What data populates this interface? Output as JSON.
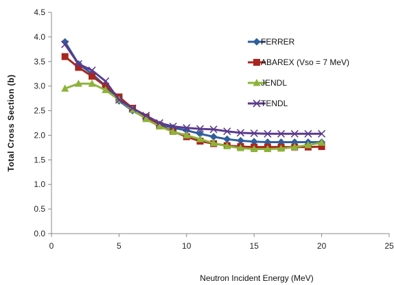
{
  "chart_data": {
    "type": "line",
    "xlabel": "Neutron Incident  Energy (MeV)",
    "ylabel": "Total Cross Section (b)",
    "xlim": [
      0,
      25
    ],
    "ylim": [
      0,
      4.5
    ],
    "x_ticks": [
      "0",
      "5",
      "10",
      "15",
      "20",
      "25"
    ],
    "y_ticks": [
      "0.0",
      "0.5",
      "1.0",
      "1.5",
      "2.0",
      "2.5",
      "3.0",
      "3.5",
      "4.0",
      "4.5"
    ],
    "grid": false,
    "legend_position": "top-right",
    "series": [
      {
        "name": "FERRER",
        "color": "#2E5E9E",
        "marker": "diamond",
        "x": [
          1,
          2,
          3,
          4,
          5,
          6,
          7,
          8,
          9,
          10,
          11,
          12,
          13,
          14,
          15,
          16,
          17,
          18,
          19,
          20
        ],
        "y": [
          3.9,
          3.45,
          3.25,
          3.0,
          2.7,
          2.5,
          2.35,
          2.22,
          2.15,
          2.1,
          2.03,
          1.97,
          1.92,
          1.89,
          1.87,
          1.86,
          1.86,
          1.86,
          1.86,
          1.86
        ]
      },
      {
        "name": "ABAREX (Vso = 7 MeV)",
        "color": "#A8261E",
        "marker": "square",
        "x": [
          1,
          2,
          3,
          4,
          5,
          6,
          7,
          8,
          9,
          10,
          11,
          12,
          13,
          14,
          15,
          16,
          17,
          18,
          19,
          20
        ],
        "y": [
          3.6,
          3.38,
          3.2,
          3.0,
          2.78,
          2.55,
          2.37,
          2.2,
          2.08,
          1.97,
          1.88,
          1.83,
          1.79,
          1.77,
          1.76,
          1.76,
          1.76,
          1.76,
          1.76,
          1.77
        ]
      },
      {
        "name": "JENDL",
        "color": "#8DB33A",
        "marker": "triangle",
        "x": [
          1,
          2,
          3,
          4,
          5,
          6,
          7,
          8,
          9,
          10,
          11,
          12,
          13,
          14,
          15,
          16,
          17,
          18,
          19,
          20
        ],
        "y": [
          2.95,
          3.05,
          3.05,
          2.92,
          2.72,
          2.52,
          2.33,
          2.18,
          2.07,
          2.0,
          1.92,
          1.84,
          1.78,
          1.74,
          1.72,
          1.72,
          1.73,
          1.76,
          1.8,
          1.85
        ]
      },
      {
        "name": "TENDL",
        "color": "#5B3A8C",
        "marker": "x",
        "x": [
          1,
          2,
          3,
          4,
          5,
          6,
          7,
          8,
          9,
          10,
          11,
          12,
          13,
          14,
          15,
          16,
          17,
          18,
          19,
          20
        ],
        "y": [
          3.85,
          3.45,
          3.32,
          3.1,
          2.72,
          2.55,
          2.4,
          2.25,
          2.18,
          2.15,
          2.13,
          2.12,
          2.08,
          2.05,
          2.04,
          2.03,
          2.03,
          2.03,
          2.03,
          2.03
        ]
      }
    ]
  }
}
